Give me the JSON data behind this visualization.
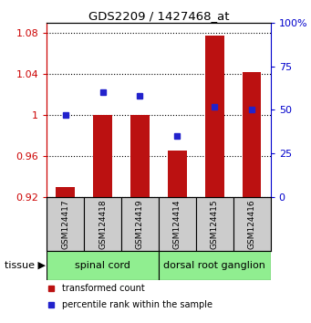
{
  "title": "GDS2209 / 1427468_at",
  "samples": [
    "GSM124417",
    "GSM124418",
    "GSM124419",
    "GSM124414",
    "GSM124415",
    "GSM124416"
  ],
  "red_values": [
    0.93,
    1.0,
    1.0,
    0.965,
    1.077,
    1.042
  ],
  "blue_values": [
    47,
    60,
    58,
    35,
    52,
    50
  ],
  "ylim_left": [
    0.92,
    1.09
  ],
  "ylim_right": [
    0,
    100
  ],
  "yticks_left": [
    0.92,
    0.96,
    1.0,
    1.04,
    1.08
  ],
  "yticks_right": [
    0,
    25,
    50,
    75,
    100
  ],
  "ytick_labels_left": [
    "0.92",
    "0.96",
    "1",
    "1.04",
    "1.08"
  ],
  "ytick_labels_right": [
    "0",
    "25",
    "50",
    "75",
    "100%"
  ],
  "bar_color": "#BB1111",
  "dot_color": "#2222CC",
  "bar_width": 0.5,
  "grid_color": "#000000",
  "left_tick_color": "#CC0000",
  "right_tick_color": "#0000CC",
  "legend_labels": [
    "transformed count",
    "percentile rank within the sample"
  ],
  "group_spinal_label": "spinal cord",
  "group_dorsal_label": "dorsal root ganglion",
  "tissue_label": "tissue",
  "sample_bg": "#CCCCCC",
  "group_bg": "#90EE90"
}
